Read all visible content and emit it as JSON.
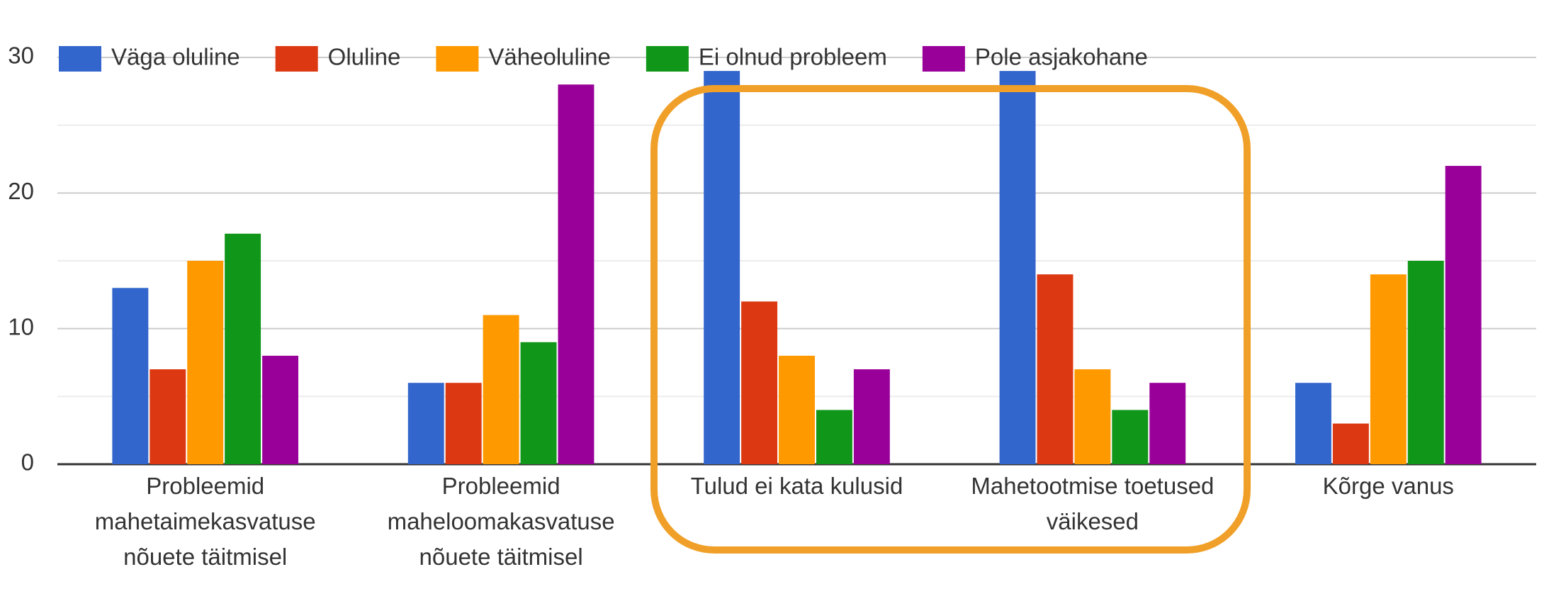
{
  "chart_data": {
    "type": "bar",
    "categories": [
      "Probleemid mahetaimekasvatuse nõuete täitmisel",
      "Probleemid maheloomakasvatuse nõuete täitmisel",
      "Tulud ei kata kulusid",
      "Mahetootmise toetused väikesed",
      "Kõrge vanus"
    ],
    "series": [
      {
        "name": "Väga oluline",
        "color": "#3366cc",
        "values": [
          13,
          6,
          29,
          29,
          6
        ]
      },
      {
        "name": "Oluline",
        "color": "#dc3912",
        "values": [
          7,
          6,
          12,
          14,
          3
        ]
      },
      {
        "name": "Väheoluline",
        "color": "#ff9900",
        "values": [
          15,
          11,
          8,
          7,
          14
        ]
      },
      {
        "name": "Ei olnud probleem",
        "color": "#109618",
        "values": [
          17,
          9,
          4,
          4,
          15
        ]
      },
      {
        "name": "Pole asjakohane",
        "color": "#990099",
        "values": [
          8,
          28,
          7,
          6,
          22
        ]
      }
    ],
    "ylim": [
      0,
      30
    ],
    "yticks": [
      0,
      10,
      20,
      30
    ],
    "minor_yticks": [
      5,
      15,
      25
    ],
    "grid": true,
    "legend": "top"
  }
}
